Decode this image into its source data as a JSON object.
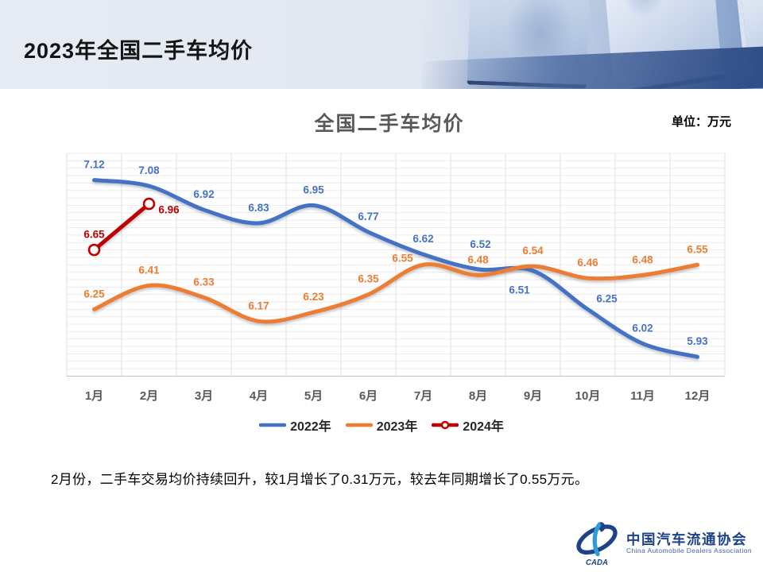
{
  "header": {
    "title": "2023年全国二手车均价"
  },
  "chart": {
    "title": "全国二手车均价",
    "unit_label": "单位：万元"
  },
  "chart_data": {
    "type": "line",
    "categories": [
      "1月",
      "2月",
      "3月",
      "4月",
      "5月",
      "6月",
      "7月",
      "8月",
      "9月",
      "10月",
      "11月",
      "12月"
    ],
    "series": [
      {
        "name": "2022年",
        "color": "#4472C4",
        "values": [
          7.12,
          7.08,
          6.92,
          6.83,
          6.95,
          6.77,
          6.62,
          6.52,
          6.51,
          6.25,
          6.02,
          5.93
        ]
      },
      {
        "name": "2023年",
        "color": "#ED7D31",
        "values": [
          6.25,
          6.41,
          6.33,
          6.17,
          6.23,
          6.35,
          6.55,
          6.48,
          6.54,
          6.46,
          6.48,
          6.55
        ]
      },
      {
        "name": "2024年",
        "color": "#C00000",
        "marker": "circle",
        "values": [
          6.65,
          6.96
        ]
      }
    ],
    "title": "全国二手车均价",
    "xlabel": "",
    "ylabel": "万元",
    "ylim": [
      5.8,
      7.3
    ],
    "grid": {
      "h_step": 0.05,
      "vertical": true
    },
    "legend_position": "bottom",
    "smooth": true,
    "label_offsets": {
      "2022年": {
        "7": [
          3,
          -27
        ],
        "8": [
          -17,
          29
        ],
        "9": [
          24,
          -9
        ]
      },
      "2023年": {
        "6": [
          -26,
          -4
        ]
      },
      "2024年": {
        "1": [
          25,
          12
        ]
      }
    }
  },
  "note": {
    "text": "2月份，二手车交易均价持续回升，较1月增长了0.31万元，较去年同期增长了0.55万元。"
  },
  "logo": {
    "cn": "中国汽车流通协会",
    "en": "China Automobile Dealers Association",
    "mark": "CADA"
  }
}
